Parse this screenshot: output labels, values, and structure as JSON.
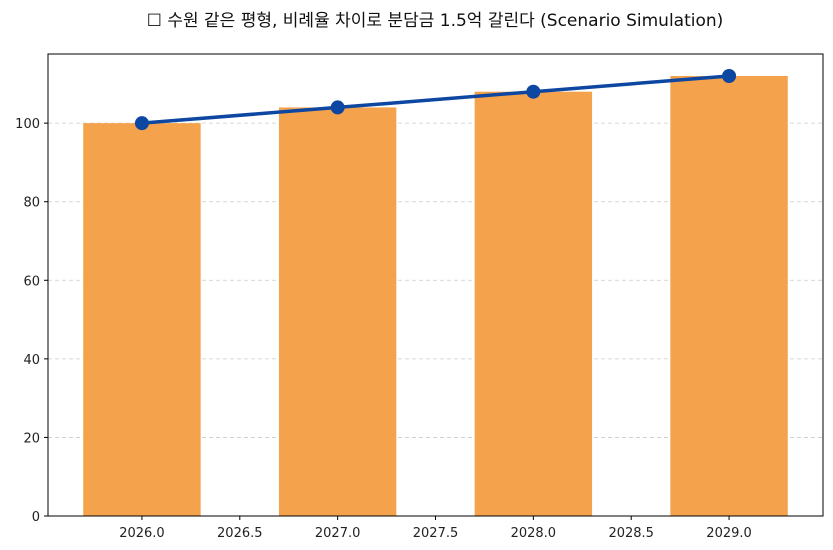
{
  "chart_data": {
    "type": "bar+line",
    "title": "☐ 수원 같은 평형, 비례율 차이로 분담금 1.5억 갈린다 (Scenario Simulation)",
    "xlabel": "",
    "ylabel": "",
    "x": [
      2026,
      2027,
      2028,
      2029
    ],
    "series": [
      {
        "type": "bar",
        "values": [
          100,
          104,
          108,
          112
        ],
        "color": "#F5A24D"
      },
      {
        "type": "line",
        "values": [
          100,
          104,
          108,
          112
        ],
        "color": "#0D47A1",
        "marker": "circle"
      }
    ],
    "xlim": [
      2025.52,
      2029.48
    ],
    "ylim": [
      0,
      117.6
    ],
    "xticks": [
      "2026.0",
      "2026.5",
      "2027.0",
      "2027.5",
      "2028.0",
      "2028.5",
      "2029.0"
    ],
    "yticks": [
      "0",
      "20",
      "40",
      "60",
      "80",
      "100"
    ],
    "grid": "horizontal-dashed",
    "legend": "none"
  }
}
